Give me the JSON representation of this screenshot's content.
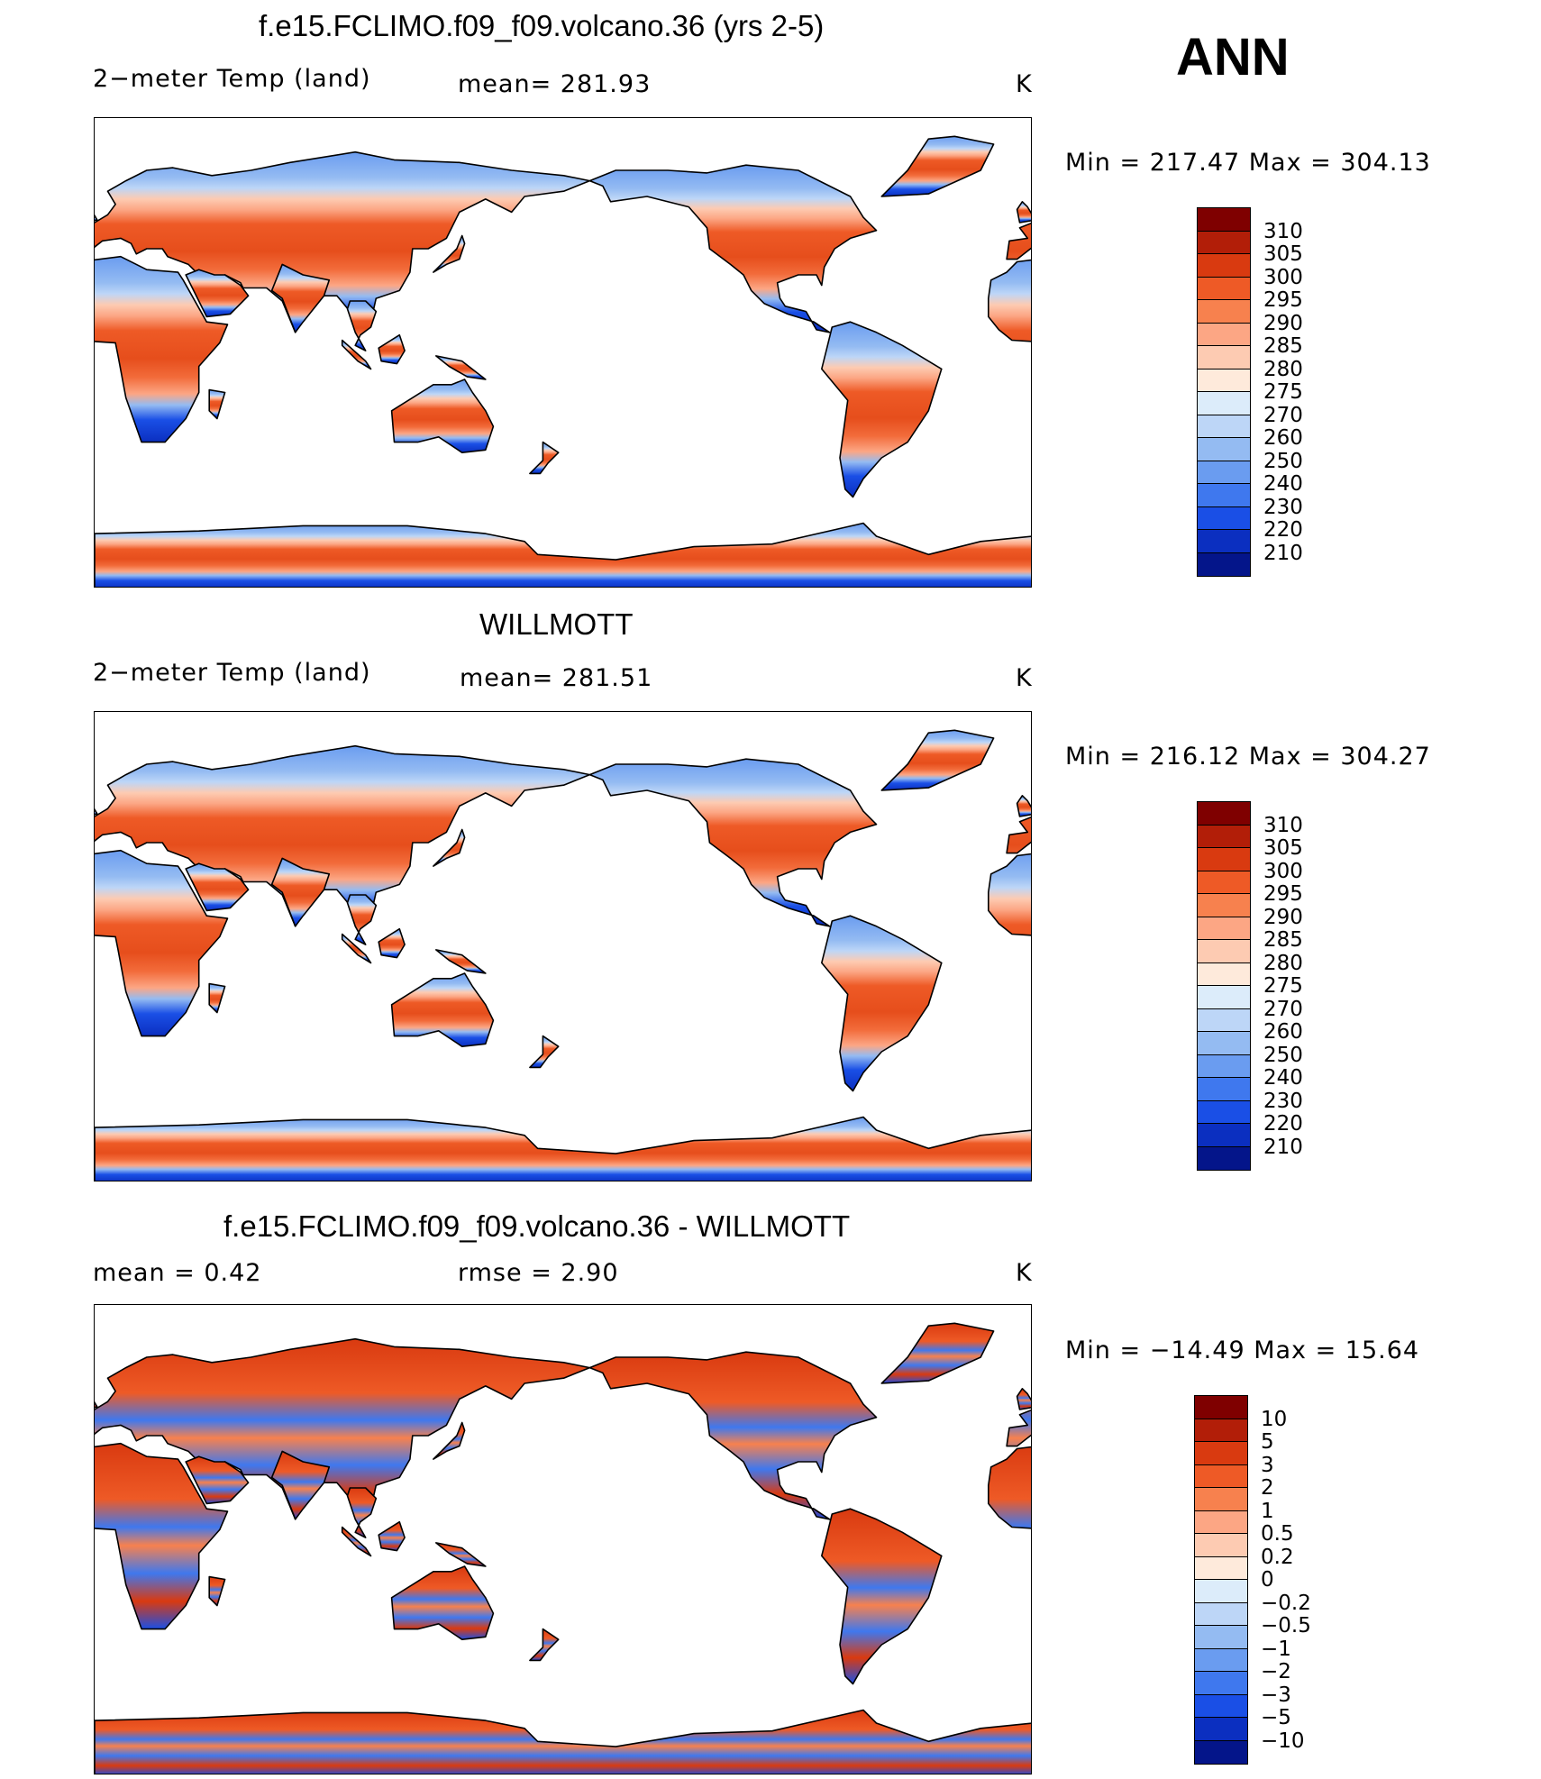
{
  "season": "ANN",
  "units": "K",
  "panels": [
    {
      "title": "f.e15.FCLIMO.f09_f09.volcano.36 (yrs 2-5)",
      "variable": "2−meter Temp (land)",
      "stat1": "mean=  281.93",
      "stat2": "",
      "units": "K",
      "minmax": "Min  =  217.47  Max  =  304.13",
      "kind": "abs",
      "colorbar": {
        "colors": [
          "#7f0000",
          "#b21e08",
          "#d93a10",
          "#ee5a26",
          "#f7814e",
          "#fca684",
          "#fdcbb2",
          "#feeadb",
          "#dcecfa",
          "#bdd6f7",
          "#94bbf2",
          "#6a9cf0",
          "#3f78ee",
          "#1a4fe6",
          "#0b2fc0",
          "#04158a"
        ],
        "labels": [
          "310",
          "305",
          "300",
          "295",
          "290",
          "285",
          "280",
          "275",
          "270",
          "260",
          "250",
          "240",
          "230",
          "220",
          "210"
        ]
      }
    },
    {
      "title": "WILLMOTT",
      "variable": "2−meter Temp (land)",
      "stat1": "mean=  281.51",
      "stat2": "",
      "units": "K",
      "minmax": "Min  =  216.12  Max  =  304.27",
      "kind": "abs",
      "colorbar": {
        "colors": [
          "#7f0000",
          "#b21e08",
          "#d93a10",
          "#ee5a26",
          "#f7814e",
          "#fca684",
          "#fdcbb2",
          "#feeadb",
          "#dcecfa",
          "#bdd6f7",
          "#94bbf2",
          "#6a9cf0",
          "#3f78ee",
          "#1a4fe6",
          "#0b2fc0",
          "#04158a"
        ],
        "labels": [
          "310",
          "305",
          "300",
          "295",
          "290",
          "285",
          "280",
          "275",
          "270",
          "260",
          "250",
          "240",
          "230",
          "220",
          "210"
        ]
      }
    },
    {
      "title": "f.e15.FCLIMO.f09_f09.volcano.36 - WILLMOTT",
      "variable": "mean  =      0.42",
      "stat1": "rmse  =      2.90",
      "stat2": "",
      "units": "K",
      "minmax": "Min  =  −14.49  Max  =    15.64",
      "kind": "diff",
      "colorbar": {
        "colors": [
          "#7f0000",
          "#b21e08",
          "#d93a10",
          "#ee5a26",
          "#f7814e",
          "#fca684",
          "#fdcbb2",
          "#feeadb",
          "#dcecfa",
          "#bdd6f7",
          "#94bbf2",
          "#6a9cf0",
          "#3f78ee",
          "#1a4fe6",
          "#0b2fc0",
          "#04158a"
        ],
        "labels": [
          "10",
          "5",
          "3",
          "2",
          "1",
          "0.5",
          "0.2",
          "0",
          "−0.2",
          "−0.5",
          "−1",
          "−2",
          "−3",
          "−5",
          "−10"
        ]
      }
    }
  ]
}
